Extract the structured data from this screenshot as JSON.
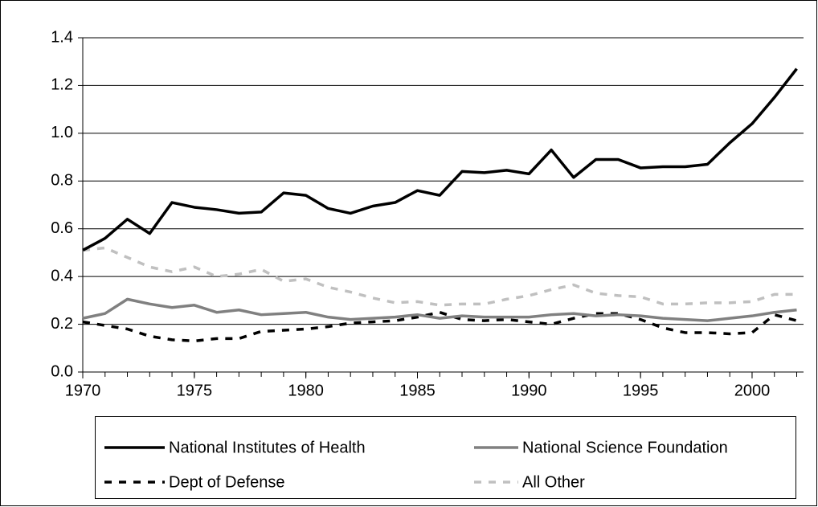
{
  "chart_data": {
    "type": "line",
    "x": [
      1970,
      1971,
      1972,
      1973,
      1974,
      1975,
      1976,
      1977,
      1978,
      1979,
      1980,
      1981,
      1982,
      1983,
      1984,
      1985,
      1986,
      1987,
      1988,
      1989,
      1990,
      1991,
      1992,
      1993,
      1994,
      1995,
      1996,
      1997,
      1998,
      1999,
      2000,
      2001,
      2002
    ],
    "xlim": [
      1970,
      2002
    ],
    "xticks": [
      1970,
      1975,
      1980,
      1985,
      1990,
      1995,
      2000
    ],
    "ylim": [
      0,
      1.4
    ],
    "yticks": [
      {
        "value": 0,
        "label": "0.0"
      },
      0.2,
      0.4,
      0.6,
      0.8,
      {
        "value": 1,
        "label": "1.0"
      },
      1.2,
      1.4
    ],
    "grid": true,
    "legend": "bottom",
    "series": [
      {
        "name": "National Institutes of Health",
        "color": "#000000",
        "dash": false,
        "values": [
          0.51,
          0.56,
          0.64,
          0.58,
          0.71,
          0.69,
          0.68,
          0.665,
          0.67,
          0.75,
          0.74,
          0.685,
          0.665,
          0.695,
          0.71,
          0.76,
          0.74,
          0.84,
          0.835,
          0.845,
          0.83,
          0.93,
          0.815,
          0.89,
          0.89,
          0.855,
          0.86,
          0.86,
          0.87,
          0.96,
          1.04,
          1.15,
          1.27
        ]
      },
      {
        "name": "National Science Foundation",
        "color": "#808080",
        "dash": false,
        "values": [
          0.225,
          0.245,
          0.305,
          0.285,
          0.27,
          0.28,
          0.25,
          0.26,
          0.24,
          0.245,
          0.25,
          0.23,
          0.22,
          0.225,
          0.23,
          0.24,
          0.225,
          0.235,
          0.23,
          0.23,
          0.23,
          0.24,
          0.245,
          0.235,
          0.24,
          0.235,
          0.225,
          0.22,
          0.215,
          0.225,
          0.235,
          0.25,
          0.26
        ]
      },
      {
        "name": "Dept of Defense",
        "color": "#000000",
        "dash": true,
        "values": [
          0.21,
          0.195,
          0.18,
          0.15,
          0.135,
          0.13,
          0.14,
          0.14,
          0.17,
          0.175,
          0.18,
          0.19,
          0.205,
          0.21,
          0.215,
          0.23,
          0.25,
          0.22,
          0.215,
          0.22,
          0.21,
          0.2,
          0.225,
          0.245,
          0.245,
          0.22,
          0.185,
          0.165,
          0.165,
          0.16,
          0.165,
          0.24,
          0.215
        ]
      },
      {
        "name": "All Other",
        "color": "#c0c0c0",
        "dash": true,
        "values": [
          0.51,
          0.52,
          0.48,
          0.44,
          0.42,
          0.44,
          0.4,
          0.41,
          0.43,
          0.38,
          0.39,
          0.355,
          0.335,
          0.31,
          0.29,
          0.295,
          0.28,
          0.285,
          0.285,
          0.305,
          0.32,
          0.345,
          0.365,
          0.33,
          0.32,
          0.315,
          0.285,
          0.285,
          0.29,
          0.29,
          0.295,
          0.325,
          0.325
        ]
      }
    ]
  }
}
